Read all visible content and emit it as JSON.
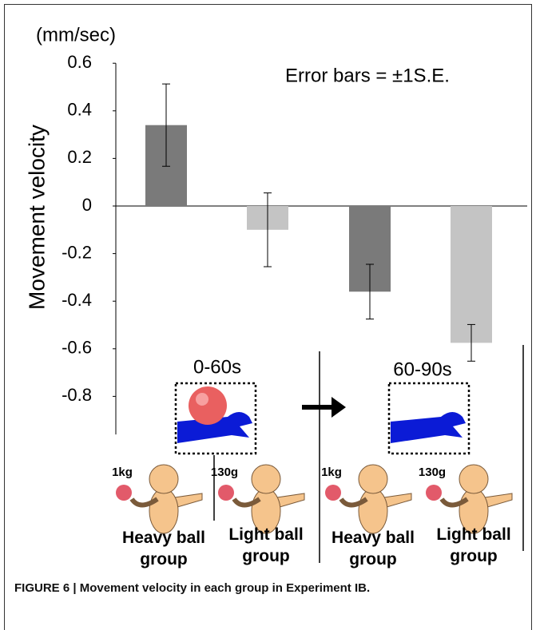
{
  "chart_data": {
    "type": "bar",
    "y_unit": "(mm/sec)",
    "ylabel": "Movement velocity",
    "annotation": "Error bars = ±1S.E.",
    "phases": [
      "0-60s",
      "60-90s"
    ],
    "weights": [
      "1kg",
      "130g",
      "1kg",
      "130g"
    ],
    "categories": [
      "Heavy ball group",
      "Light ball group",
      "Heavy ball group",
      "Light ball group"
    ],
    "series": [
      {
        "values": [
          0.34,
          -0.1,
          -0.36,
          -0.575
        ],
        "errors": [
          0.173,
          0.155,
          0.115,
          0.077
        ],
        "colors": [
          "#7a7a7a",
          "#c4c4c4",
          "#7a7a7a",
          "#c4c4c4"
        ]
      }
    ],
    "ylim": [
      -0.96,
      0.6
    ],
    "yticks": [
      0.6,
      0.4,
      0.2,
      0,
      -0.2,
      -0.4,
      -0.6,
      -0.8
    ],
    "caption": "FIGURE 6 | Movement velocity in each group in Experiment IB."
  }
}
